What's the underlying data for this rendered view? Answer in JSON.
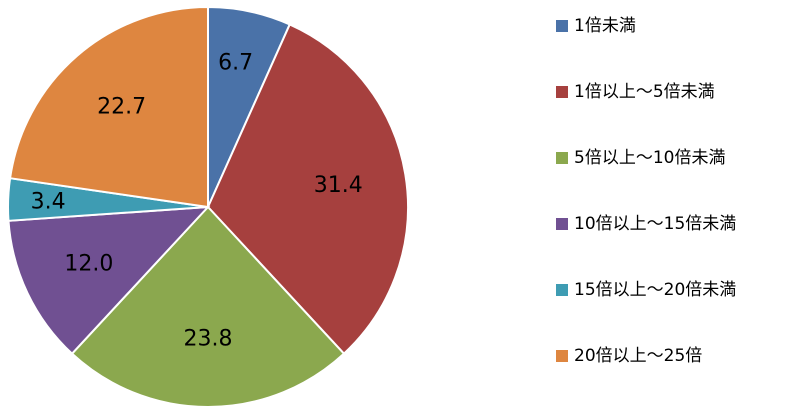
{
  "chart_data": {
    "type": "pie",
    "categories": [
      "1倍未満",
      "1倍以上～5倍未満",
      "5倍以上～10倍未満",
      "10倍以上～15倍未満",
      "15倍以上～20倍未満",
      "20倍以上～25倍"
    ],
    "values": [
      6.7,
      31.4,
      23.8,
      12.0,
      3.4,
      22.7
    ],
    "value_labels": [
      "6.7",
      "31.4",
      "23.8",
      "12.0",
      "3.4",
      "22.7"
    ],
    "colors": [
      "#4A72A8",
      "#A6403E",
      "#8BA84E",
      "#705092",
      "#3E9CB3",
      "#DE8640"
    ],
    "start_angle_deg": 0,
    "direction": "clockwise",
    "legend_position": "right"
  }
}
